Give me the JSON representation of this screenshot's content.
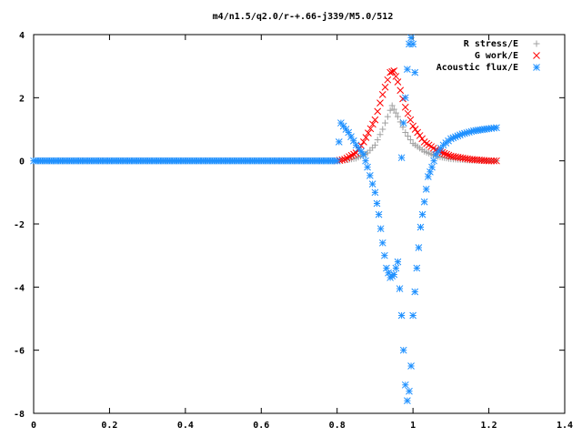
{
  "chart_data": {
    "type": "scatter",
    "title": "m4/n1.5/q2.0/r-+.66-j339/M5.0/512",
    "xlabel": "",
    "ylabel": "",
    "xlim": [
      0,
      1.4
    ],
    "ylim": [
      -8,
      4
    ],
    "xticks": [
      "0",
      "0.2",
      "0.4",
      "0.6",
      "0.8",
      "1",
      "1.2",
      "1.4"
    ],
    "yticks": [
      "4",
      "2",
      "0",
      "-2",
      "-4",
      "-6",
      "-8"
    ],
    "legend_position": "top-right",
    "grid": false,
    "series": [
      {
        "name": "R stress/E",
        "marker": "plus",
        "color": "#a0a0a0",
        "points": [
          [
            0.0,
            0
          ],
          [
            0.1,
            0
          ],
          [
            0.2,
            0
          ],
          [
            0.3,
            0
          ],
          [
            0.4,
            0
          ],
          [
            0.5,
            0
          ],
          [
            0.6,
            0
          ],
          [
            0.7,
            0
          ],
          [
            0.8,
            0
          ],
          [
            0.82,
            0.02
          ],
          [
            0.85,
            0.08
          ],
          [
            0.88,
            0.25
          ],
          [
            0.9,
            0.5
          ],
          [
            0.92,
            1.0
          ],
          [
            0.94,
            1.6
          ],
          [
            0.945,
            1.75
          ],
          [
            0.96,
            1.4
          ],
          [
            0.98,
            0.9
          ],
          [
            1.0,
            0.55
          ],
          [
            1.03,
            0.3
          ],
          [
            1.06,
            0.15
          ],
          [
            1.1,
            0.06
          ],
          [
            1.15,
            0.02
          ],
          [
            1.2,
            0.0
          ],
          [
            1.22,
            0.0
          ]
        ]
      },
      {
        "name": "G work/E",
        "marker": "cross",
        "color": "#ff0000",
        "points": [
          [
            0.8,
            0.0
          ],
          [
            0.82,
            0.05
          ],
          [
            0.85,
            0.25
          ],
          [
            0.87,
            0.6
          ],
          [
            0.9,
            1.3
          ],
          [
            0.92,
            2.1
          ],
          [
            0.94,
            2.8
          ],
          [
            0.95,
            2.85
          ],
          [
            0.96,
            2.5
          ],
          [
            0.98,
            1.7
          ],
          [
            1.0,
            1.1
          ],
          [
            1.03,
            0.6
          ],
          [
            1.06,
            0.35
          ],
          [
            1.1,
            0.15
          ],
          [
            1.15,
            0.05
          ],
          [
            1.2,
            0.0
          ],
          [
            1.22,
            0.0
          ]
        ]
      },
      {
        "name": "Acoustic flux/E",
        "marker": "star",
        "color": "#1e90ff",
        "points": [
          [
            0.0,
            0
          ],
          [
            0.1,
            0
          ],
          [
            0.2,
            0
          ],
          [
            0.3,
            0
          ],
          [
            0.4,
            0
          ],
          [
            0.5,
            0
          ],
          [
            0.6,
            0
          ],
          [
            0.7,
            0
          ],
          [
            0.8,
            0
          ],
          [
            0.81,
            1.2
          ],
          [
            0.83,
            0.9
          ],
          [
            0.85,
            0.5
          ],
          [
            0.87,
            0.2
          ],
          [
            0.88,
            -0.2
          ],
          [
            0.9,
            -1.0
          ],
          [
            0.91,
            -1.7
          ],
          [
            0.92,
            -2.6
          ],
          [
            0.93,
            -3.4
          ],
          [
            0.94,
            -3.7
          ],
          [
            0.95,
            -3.6
          ],
          [
            0.96,
            -3.2
          ],
          [
            0.97,
            -4.9
          ],
          [
            0.975,
            -6.0
          ],
          [
            0.98,
            -7.1
          ],
          [
            0.985,
            -7.6
          ],
          [
            0.99,
            -7.3
          ],
          [
            0.995,
            -6.5
          ],
          [
            1.0,
            -4.9
          ],
          [
            1.01,
            -3.4
          ],
          [
            1.02,
            -2.1
          ],
          [
            1.03,
            -1.3
          ],
          [
            1.04,
            -0.5
          ],
          [
            1.05,
            -0.2
          ],
          [
            1.06,
            0.2
          ],
          [
            1.08,
            0.5
          ],
          [
            1.1,
            0.7
          ],
          [
            1.13,
            0.85
          ],
          [
            1.16,
            0.95
          ],
          [
            1.2,
            1.02
          ],
          [
            1.22,
            1.05
          ],
          [
            0.97,
            0.1
          ],
          [
            0.975,
            1.2
          ],
          [
            0.98,
            2.0
          ],
          [
            0.985,
            2.9
          ],
          [
            0.99,
            3.7
          ],
          [
            0.995,
            3.9
          ],
          [
            1.0,
            3.7
          ],
          [
            1.005,
            2.8
          ]
        ]
      }
    ]
  }
}
